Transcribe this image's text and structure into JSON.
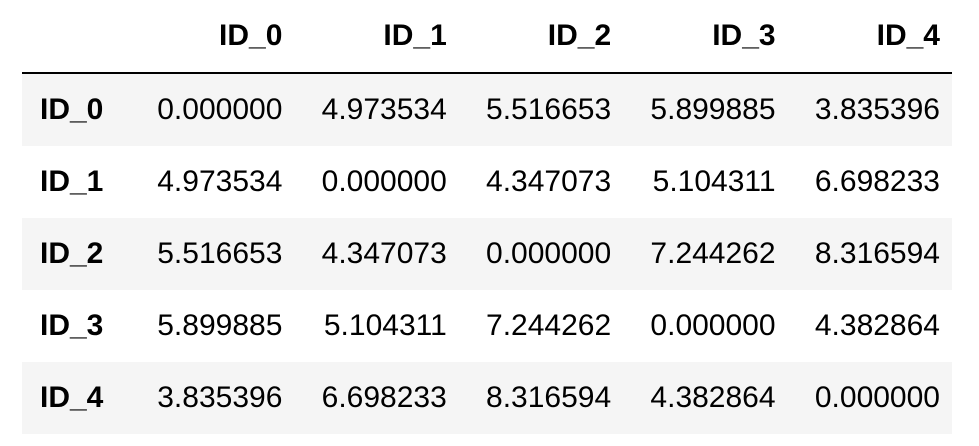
{
  "table": {
    "columns": [
      "ID_0",
      "ID_1",
      "ID_2",
      "ID_3",
      "ID_4"
    ],
    "rows": [
      {
        "index": "ID_0",
        "values": [
          "0.000000",
          "4.973534",
          "5.516653",
          "5.899885",
          "3.835396"
        ]
      },
      {
        "index": "ID_1",
        "values": [
          "4.973534",
          "0.000000",
          "4.347073",
          "5.104311",
          "6.698233"
        ]
      },
      {
        "index": "ID_2",
        "values": [
          "5.516653",
          "4.347073",
          "0.000000",
          "7.244262",
          "8.316594"
        ]
      },
      {
        "index": "ID_3",
        "values": [
          "5.899885",
          "5.104311",
          "7.244262",
          "0.000000",
          "4.382864"
        ]
      },
      {
        "index": "ID_4",
        "values": [
          "3.835396",
          "6.698233",
          "8.316594",
          "4.382864",
          "0.000000"
        ]
      }
    ]
  },
  "colors": {
    "stripe": "#f5f5f5",
    "header_rule": "#000000",
    "text": "#000000"
  }
}
